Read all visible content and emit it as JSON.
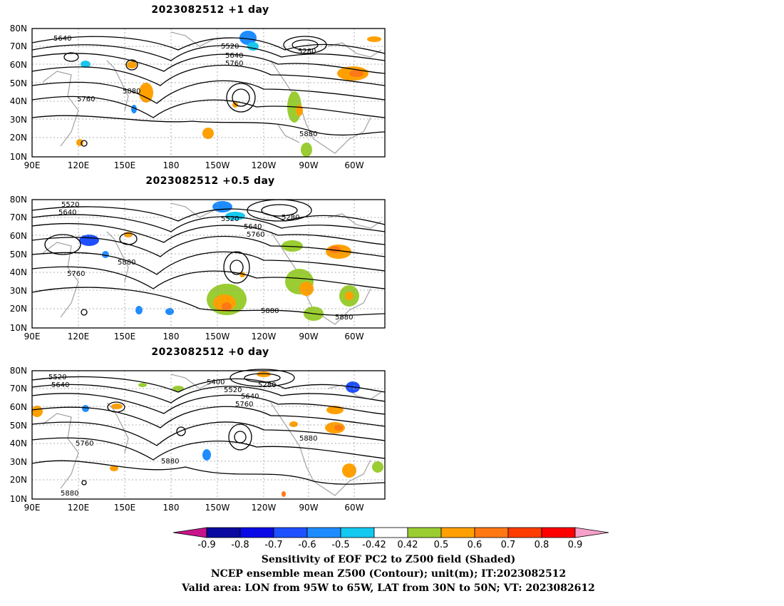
{
  "panels": [
    {
      "title": "2023082512  +1 day",
      "contour_labels": [
        "5640",
        "5520",
        "5640",
        "5760",
        "5280",
        "5880",
        "5760",
        "5880"
      ]
    },
    {
      "title": "2023082512  +0.5 day",
      "contour_labels": [
        "5520",
        "5640",
        "5520",
        "5640",
        "5760",
        "5280",
        "5880",
        "5760",
        "5880",
        "5880"
      ]
    },
    {
      "title": "2023082512  +0 day",
      "contour_labels": [
        "5520",
        "5640",
        "5400",
        "5520",
        "5640",
        "5760",
        "5280",
        "5880",
        "5760",
        "5880",
        "5880"
      ]
    }
  ],
  "axes": {
    "lat_labels": [
      "80N",
      "70N",
      "60N",
      "50N",
      "40N",
      "30N",
      "20N",
      "10N"
    ],
    "lon_labels": [
      "90E",
      "120E",
      "150E",
      "180",
      "150W",
      "120W",
      "90W",
      "60W"
    ]
  },
  "colorbar": {
    "tick_labels": [
      "-0.9",
      "-0.8",
      "-0.7",
      "-0.6",
      "-0.5",
      "-0.42",
      "0.42",
      "0.5",
      "0.6",
      "0.7",
      "0.8",
      "0.9"
    ],
    "colors": [
      "#c8148c",
      "#0a0aa0",
      "#0a0ae6",
      "#1e50ff",
      "#1e8cff",
      "#14c8f0",
      "#ffffff",
      "#9acd32",
      "#ffa000",
      "#ff7814",
      "#ff3c00",
      "#ff0000",
      "#f5a0c8"
    ]
  },
  "captions": {
    "line1": "Sensitivity of EOF PC2 to Z500 field (Shaded)",
    "line2": "NCEP ensemble mean Z500 (Contour); unit(m); IT:2023082512",
    "line3": "Valid area: LON from 95W to 65W, LAT from 30N to 50N; VT: 2023082612"
  },
  "colors": {
    "contour": "#000000",
    "coastline": "#a8a8a8",
    "grid": "#999999"
  }
}
